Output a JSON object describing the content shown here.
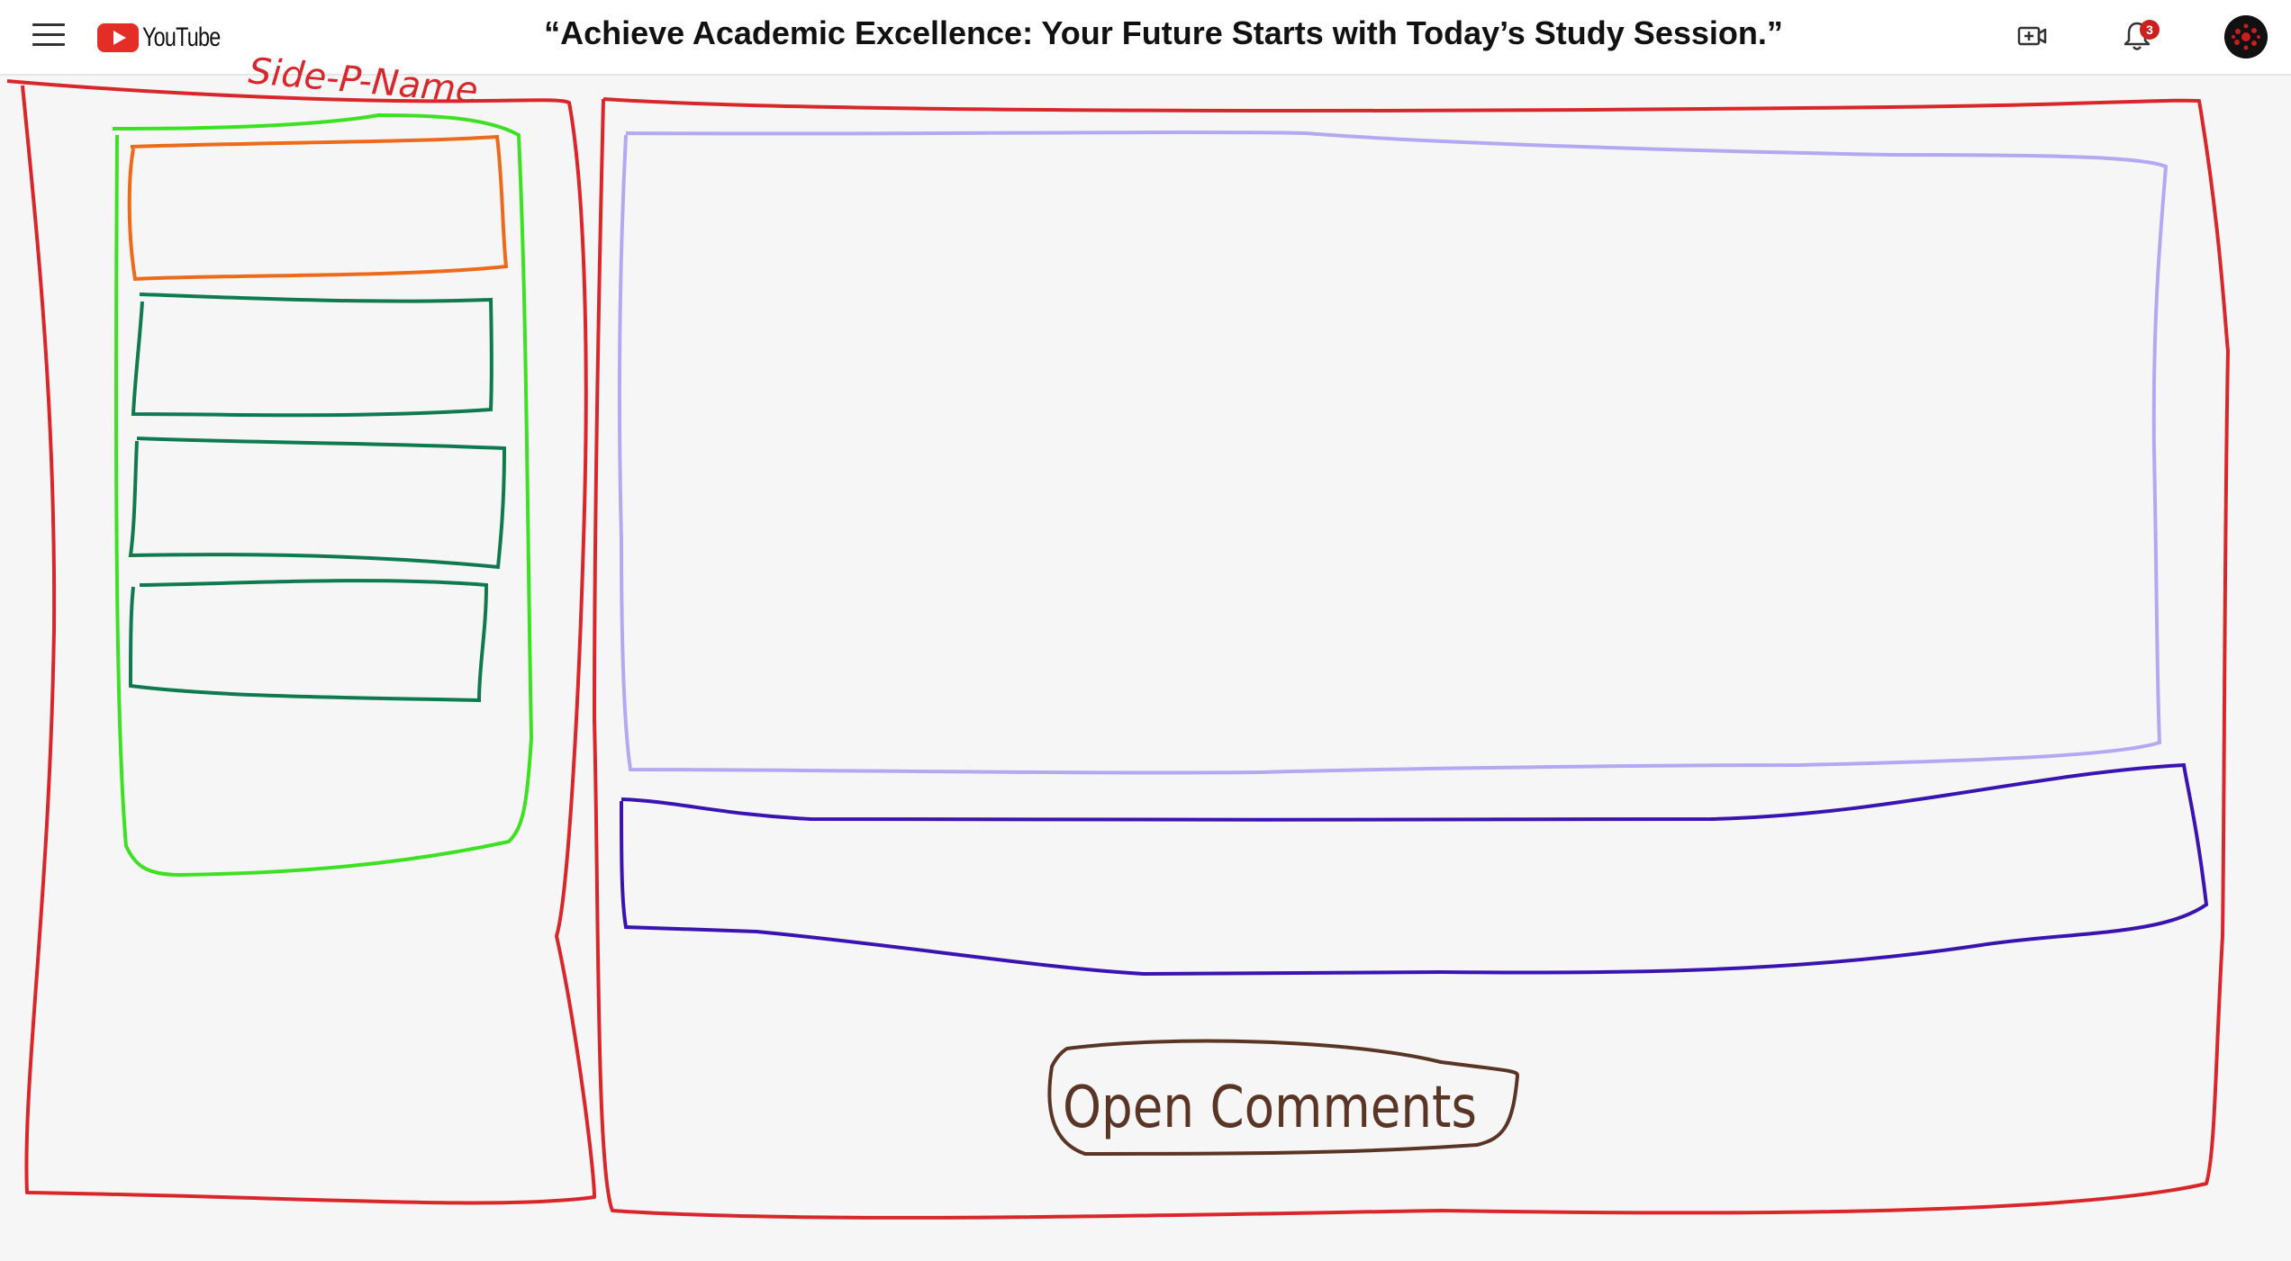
{
  "header": {
    "app_name": "YouTube",
    "video_title": "“Achieve Academic Excellence: Your Future Starts with Today’s Study Session.”",
    "notification_count": "3",
    "icons": [
      "menu-icon",
      "youtube-logo",
      "create-video-icon",
      "bell-icon",
      "avatar"
    ]
  },
  "annotations": {
    "side_panel_label": "Side-P-Name",
    "open_comments": "Open Comments"
  },
  "colors": {
    "outer_frame": "#d9262b",
    "side_panel": "#3ee024",
    "active_item": "#ee6a1b",
    "list_item": "#0f7a4e",
    "video_box": "#b3a9f2",
    "info_box": "#3a14b0",
    "comments_button": "#5a3424"
  }
}
